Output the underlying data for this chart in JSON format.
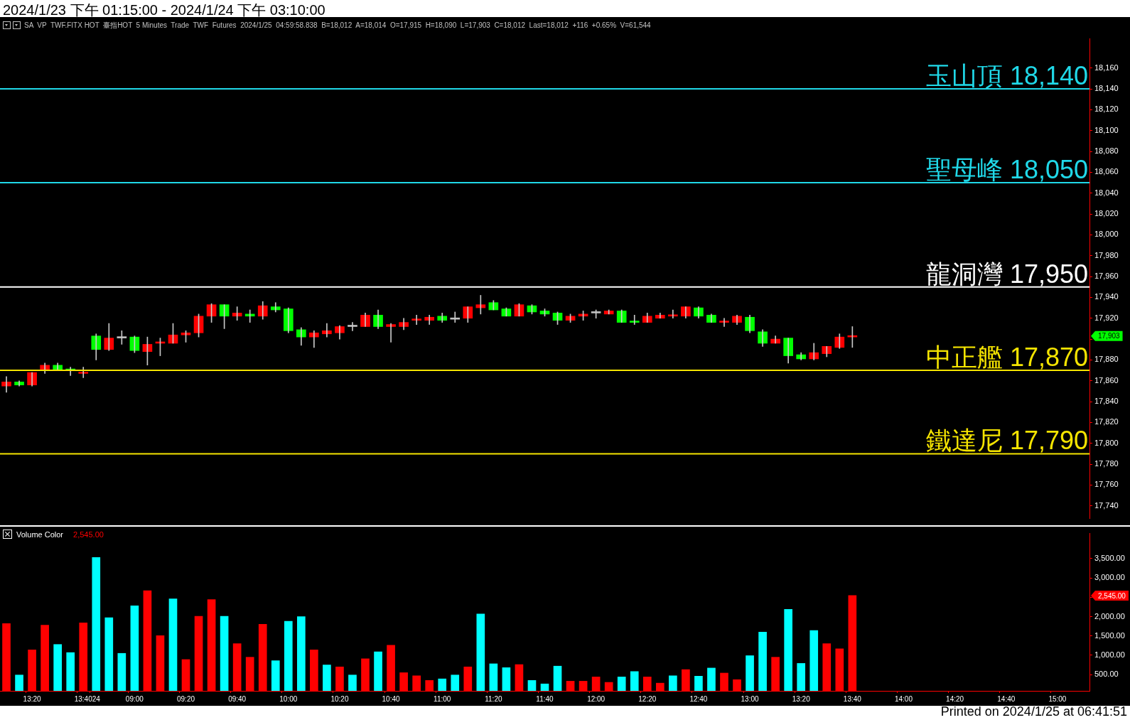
{
  "chart_data": [
    {
      "type": "candlestick",
      "title": "2024/1/23 下午 01:15:00 - 2024/1/24 下午 03:10:00",
      "subtitle": "SA  VP  TWF.FITX HOT  臺指HOT  5 Minutes  Trade  TWF  Futures  2024/1/25  04:59:58.838  B=18,012  A=18,014  O=17,915  H=18,090  L=17,903  C=18,012  Last=18,012  +116  +0.65%  V=61,544",
      "categories": [
        null,
        null,
        null,
        null,
        null,
        null,
        null,
        null,
        null,
        null,
        null,
        null,
        null,
        null,
        null,
        null,
        null,
        null,
        null,
        null,
        null,
        null,
        null,
        null,
        null,
        null,
        null,
        null,
        null,
        null,
        null,
        null,
        null,
        null,
        null,
        null,
        null,
        null,
        null,
        null,
        null,
        null,
        null,
        null,
        null,
        null,
        null,
        null,
        null,
        null,
        null,
        null,
        null,
        null,
        null,
        null,
        null,
        null,
        null,
        null,
        null,
        null,
        null,
        null,
        null,
        null,
        null,
        null,
        null,
        null,
        null,
        null,
        null,
        null,
        null,
        null,
        null,
        null,
        null,
        null,
        null,
        null,
        null,
        null,
        null
      ],
      "ohlc": [
        [
          17855,
          17864,
          17849,
          17859
        ],
        [
          17859,
          17860,
          17855,
          17856
        ],
        [
          17856,
          17868,
          17855,
          17868
        ],
        [
          17870,
          17877,
          17867,
          17875
        ],
        [
          17875,
          17877,
          17870,
          17871
        ],
        [
          17871,
          17873,
          17865,
          17870
        ],
        [
          17867,
          17873,
          17863,
          17868
        ],
        [
          17903,
          17905,
          17880,
          17890
        ],
        [
          17890,
          17915,
          17889,
          17901
        ],
        [
          17901,
          17908,
          17895,
          17901
        ],
        [
          17902,
          17903,
          17887,
          17889
        ],
        [
          17888,
          17902,
          17875,
          17895
        ],
        [
          17896,
          17901,
          17884,
          17897
        ],
        [
          17896,
          17915,
          17896,
          17904
        ],
        [
          17904,
          17908,
          17897,
          17906
        ],
        [
          17906,
          17924,
          17902,
          17922
        ],
        [
          17922,
          17934,
          17916,
          17933
        ],
        [
          17933,
          17933,
          17910,
          17922
        ],
        [
          17922,
          17931,
          17918,
          17925
        ],
        [
          17924,
          17928,
          17916,
          17922
        ],
        [
          17922,
          17936,
          17919,
          17932
        ],
        [
          17931,
          17935,
          17926,
          17928
        ],
        [
          17929,
          17930,
          17906,
          17908
        ],
        [
          17909,
          17911,
          17894,
          17902
        ],
        [
          17902,
          17908,
          17892,
          17906
        ],
        [
          17905,
          17915,
          17902,
          17908
        ],
        [
          17906,
          17913,
          17900,
          17912
        ],
        [
          17912,
          17916,
          17908,
          17912
        ],
        [
          17912,
          17925,
          17912,
          17923
        ],
        [
          17923,
          17928,
          17910,
          17912
        ],
        [
          17912,
          17915,
          17897,
          17914
        ],
        [
          17912,
          17920,
          17909,
          17916
        ],
        [
          17918,
          17923,
          17914,
          17919
        ],
        [
          17918,
          17923,
          17914,
          17921
        ],
        [
          17922,
          17925,
          17916,
          17918
        ],
        [
          17919,
          17926,
          17916,
          17919
        ],
        [
          17920,
          17931,
          17916,
          17931
        ],
        [
          17930,
          17942,
          17924,
          17933
        ],
        [
          17935,
          17937,
          17928,
          17928
        ],
        [
          17929,
          17930,
          17922,
          17922
        ],
        [
          17922,
          17934,
          17922,
          17933
        ],
        [
          17932,
          17933,
          17924,
          17926
        ],
        [
          17927,
          17929,
          17922,
          17924
        ],
        [
          17925,
          17926,
          17914,
          17918
        ],
        [
          17918,
          17924,
          17916,
          17922
        ],
        [
          17922,
          17927,
          17918,
          17924
        ],
        [
          17925,
          17928,
          17920,
          17925
        ],
        [
          17924,
          17928,
          17924,
          17927
        ],
        [
          17927,
          17928,
          17916,
          17916
        ],
        [
          17917,
          17923,
          17914,
          17916
        ],
        [
          17916,
          17925,
          17916,
          17922
        ],
        [
          17920,
          17925,
          17920,
          17923
        ],
        [
          17922,
          17928,
          17920,
          17923
        ],
        [
          17922,
          17931,
          17920,
          17931
        ],
        [
          17930,
          17931,
          17920,
          17922
        ],
        [
          17923,
          17924,
          17916,
          17916
        ],
        [
          17916,
          17920,
          17912,
          17917
        ],
        [
          17916,
          17923,
          17914,
          17922
        ],
        [
          17921,
          17923,
          17906,
          17908
        ],
        [
          17907,
          17909,
          17893,
          17896
        ],
        [
          17896,
          17903,
          17896,
          17900
        ],
        [
          17901,
          17901,
          17877,
          17884
        ],
        [
          17885,
          17887,
          17880,
          17881
        ],
        [
          17881,
          17896,
          17880,
          17887
        ],
        [
          17886,
          17893,
          17883,
          17893
        ],
        [
          17892,
          17905,
          17891,
          17902
        ],
        [
          17902,
          17912,
          17892,
          17903
        ],
        null,
        null,
        null,
        null,
        null,
        null,
        null,
        null,
        null,
        null,
        null,
        null,
        null,
        null,
        null,
        null,
        null,
        null
      ],
      "colors": [
        "#ff0000",
        "#00ff00",
        "#ff0000",
        "#ff0000",
        "#00ff00",
        "#00ff00",
        "#ff0000",
        "#00ff00",
        "#ff0000",
        "#c0c0c0",
        "#00ff00",
        "#ff0000",
        "#ff0000",
        "#ff0000",
        "#ff0000",
        "#ff0000",
        "#ff0000",
        "#00ff00",
        "#ff0000",
        "#00ff00",
        "#ff0000",
        "#00ff00",
        "#00ff00",
        "#00ff00",
        "#ff0000",
        "#ff0000",
        "#ff0000",
        "#c0c0c0",
        "#ff0000",
        "#00ff00",
        "#ff0000",
        "#ff0000",
        "#ff0000",
        "#ff0000",
        "#00ff00",
        "#c0c0c0",
        "#ff0000",
        "#ff0000",
        "#00ff00",
        "#00ff00",
        "#ff0000",
        "#00ff00",
        "#00ff00",
        "#00ff00",
        "#ff0000",
        "#ff0000",
        "#c0c0c0",
        "#ff0000",
        "#00ff00",
        "#00ff00",
        "#ff0000",
        "#ff0000",
        "#ff0000",
        "#ff0000",
        "#00ff00",
        "#00ff00",
        "#ff0000",
        "#ff0000",
        "#00ff00",
        "#00ff00",
        "#ff0000",
        "#00ff00",
        "#00ff00",
        "#ff0000",
        "#ff0000",
        "#ff0000",
        "#ff0000",
        null,
        null,
        null,
        null,
        null,
        null,
        null,
        null,
        null,
        null,
        null,
        null,
        null,
        null,
        null,
        null,
        null,
        null
      ],
      "ylim": [
        17728,
        18188
      ],
      "yticks": [
        {
          "value": 17740,
          "label": "17,740"
        },
        {
          "value": 17760,
          "label": "17,760"
        },
        {
          "value": 17780,
          "label": "17,780"
        },
        {
          "value": 17800,
          "label": "17,800"
        },
        {
          "value": 17820,
          "label": "17,820"
        },
        {
          "value": 17840,
          "label": "17,840"
        },
        {
          "value": 17860,
          "label": "17,860"
        },
        {
          "value": 17880,
          "label": "17,880"
        },
        {
          "value": 17900,
          "label": null
        },
        {
          "value": 17920,
          "label": "17,920"
        },
        {
          "value": 17940,
          "label": "17,940"
        },
        {
          "value": 17960,
          "label": "17,960"
        },
        {
          "value": 17980,
          "label": "17,980"
        },
        {
          "value": 18000,
          "label": "18,000"
        },
        {
          "value": 18020,
          "label": "18,020"
        },
        {
          "value": 18040,
          "label": "18,040"
        },
        {
          "value": 18060,
          "label": "18,060"
        },
        {
          "value": 18080,
          "label": "18,080"
        },
        {
          "value": 18100,
          "label": "18,100"
        },
        {
          "value": 18120,
          "label": "18,120"
        },
        {
          "value": 18140,
          "label": "18,140"
        },
        {
          "value": 18160,
          "label": "18,160"
        }
      ],
      "ref_lines": [
        {
          "axis": "y",
          "value": 18140,
          "label": "玉山頂 18,140",
          "color": "#20d8e8"
        },
        {
          "axis": "y",
          "value": 18050,
          "label": "聖母峰 18,050",
          "color": "#20d8e8"
        },
        {
          "axis": "y",
          "value": 17950,
          "label": "龍洞灣 17,950",
          "color": "#ffffff"
        },
        {
          "axis": "y",
          "value": 17870,
          "label": "中正艦 17,870",
          "color": "#f5e400"
        },
        {
          "axis": "y",
          "value": 17790,
          "label": "鐵達尼 17,790",
          "color": "#f5e400"
        }
      ],
      "annotations": [
        "17,903"
      ],
      "tick_labels": "y"
    },
    {
      "type": "bar",
      "categories": [
        null,
        null,
        "13:20",
        null,
        null,
        null,
        "13:40",
        "24",
        null,
        null,
        "09:00",
        null,
        null,
        null,
        "09:20",
        null,
        null,
        null,
        "09:40",
        null,
        null,
        null,
        "10:00",
        null,
        null,
        null,
        "10:20",
        null,
        null,
        null,
        "10:40",
        null,
        null,
        null,
        "11:00",
        null,
        null,
        null,
        "11:20",
        null,
        null,
        null,
        "11:40",
        null,
        null,
        null,
        "12:00",
        null,
        null,
        null,
        "12:20",
        null,
        null,
        null,
        "12:40",
        null,
        null,
        null,
        "13:00",
        null,
        null,
        null,
        "13:20",
        null,
        null,
        null,
        "13:40",
        null,
        null,
        null,
        "14:00",
        null,
        null,
        null,
        "14:20",
        null,
        null,
        null,
        "14:40",
        null,
        null,
        null,
        "15:00",
        null,
        null
      ],
      "series": [
        {
          "name": "Volume Color",
          "values": [
            1820,
            490,
            1140,
            1780,
            1280,
            1070,
            1840,
            3530,
            1970,
            1050,
            2280,
            2670,
            1510,
            2460,
            890,
            2010,
            2440,
            2010,
            1300,
            950,
            1800,
            860,
            1880,
            2000,
            1140,
            750,
            700,
            490,
            910,
            1090,
            1260,
            550,
            470,
            350,
            390,
            490,
            700,
            2070,
            780,
            680,
            760,
            350,
            260,
            720,
            330,
            330,
            440,
            300,
            440,
            580,
            440,
            280,
            470,
            630,
            460,
            670,
            540,
            370,
            990,
            1600,
            950,
            2190,
            790,
            1640,
            1300,
            1170,
            2545,
            null,
            null,
            null,
            null,
            null,
            null,
            null,
            null,
            null,
            null,
            null,
            null,
            null,
            null,
            null,
            null,
            null,
            null
          ],
          "colors": [
            "#ff0000",
            "#00ffff",
            "#ff0000",
            "#ff0000",
            "#00ffff",
            "#00ffff",
            "#ff0000",
            "#00ffff",
            "#00ffff",
            "#00ffff",
            "#00ffff",
            "#ff0000",
            "#ff0000",
            "#00ffff",
            "#ff0000",
            "#ff0000",
            "#ff0000",
            "#00ffff",
            "#ff0000",
            "#ff0000",
            "#ff0000",
            "#00ffff",
            "#00ffff",
            "#00ffff",
            "#ff0000",
            "#00ffff",
            "#ff0000",
            "#00ffff",
            "#ff0000",
            "#00ffff",
            "#ff0000",
            "#ff0000",
            "#ff0000",
            "#ff0000",
            "#00ffff",
            "#00ffff",
            "#ff0000",
            "#00ffff",
            "#00ffff",
            "#00ffff",
            "#ff0000",
            "#00ffff",
            "#00ffff",
            "#00ffff",
            "#ff0000",
            "#ff0000",
            "#ff0000",
            "#ff0000",
            "#00ffff",
            "#00ffff",
            "#ff0000",
            "#ff0000",
            "#00ffff",
            "#ff0000",
            "#00ffff",
            "#00ffff",
            "#ff0000",
            "#ff0000",
            "#00ffff",
            "#00ffff",
            "#ff0000",
            "#00ffff",
            "#00ffff",
            "#00ffff",
            "#ff0000",
            "#ff0000",
            "#ff0000",
            null,
            null,
            null,
            null,
            null,
            null,
            null,
            null,
            null,
            null,
            null,
            null,
            null,
            null,
            null,
            null,
            null,
            null
          ]
        }
      ],
      "ylim": [
        80,
        4150
      ],
      "yticks": [
        {
          "value": 500,
          "label": "500.00"
        },
        {
          "value": 1000,
          "label": "1,000.00"
        },
        {
          "value": 1500,
          "label": "1,500.00"
        },
        {
          "value": 2000,
          "label": "2,000.00"
        },
        {
          "value": 2500,
          "label": null
        },
        {
          "value": 3000,
          "label": "3,000.00"
        },
        {
          "value": 3500,
          "label": "3,500.00"
        }
      ],
      "annotations": [
        "2,545.00",
        "2,545.00",
        "Printed on 2024/1/25 at 06:41:51"
      ],
      "legend": "top left"
    }
  ]
}
